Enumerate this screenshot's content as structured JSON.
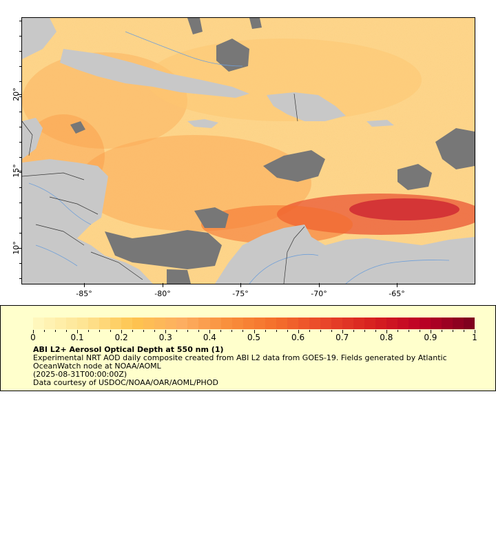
{
  "map": {
    "x_ticks": [
      "-85°",
      "-80°",
      "-75°",
      "-70°",
      "-65°"
    ],
    "y_ticks": [
      "20°",
      "15°",
      "10°"
    ],
    "colors": {
      "ocean_base": "#fdd58a",
      "land": "#c8c8c8",
      "cloud_mask": "#777777",
      "rivers": "#6f9fd8",
      "borders": "#333333"
    }
  },
  "legend": {
    "colorbar_labels": [
      "0",
      "0.1",
      "0.2",
      "0.3",
      "0.4",
      "0.5",
      "0.6",
      "0.7",
      "0.8",
      "0.9",
      "1"
    ],
    "colorbar_colors": [
      "#fff7bc",
      "#fee391",
      "#fec44f",
      "#fdae61",
      "#f98e3a",
      "#f46d2b",
      "#e8452a",
      "#d7201f",
      "#bd0026",
      "#80001e"
    ],
    "title": "ABI L2+ Aerosol Optical Depth at 550 nm (1)",
    "line1": "Experimental NRT AOD daily composite created from ABI L2 data from GOES-19. Fields generated by Atlantic OceanWatch node at NOAA/AOML",
    "line2": "(2025-08-31T00:00:00Z)",
    "line3": "Data courtesy of USDOC/NOAA/OAR/AOML/PHOD"
  }
}
